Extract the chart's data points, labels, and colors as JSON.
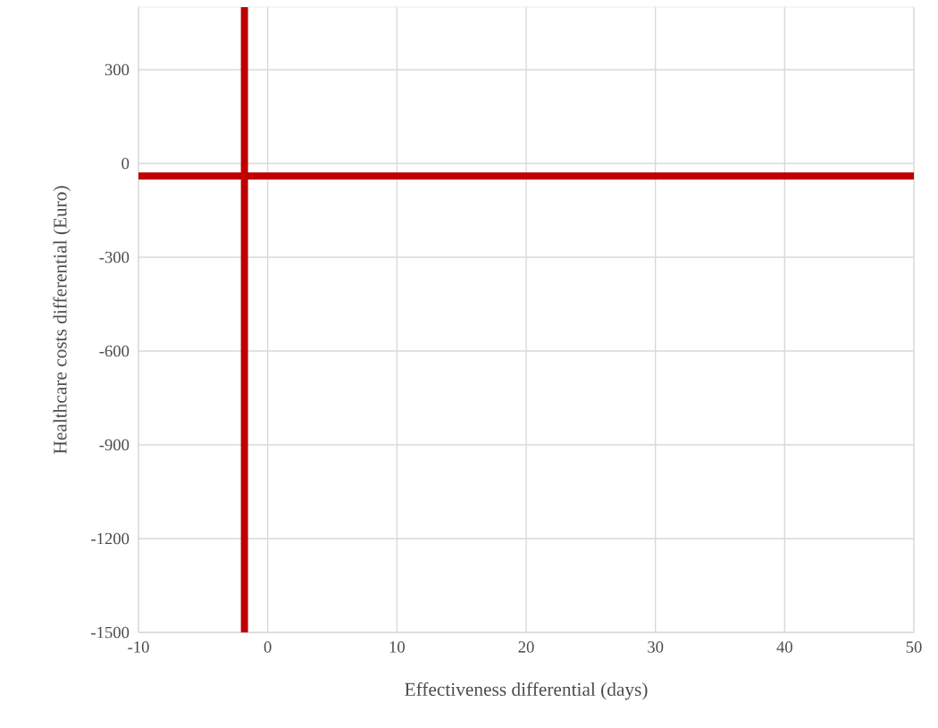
{
  "chart_data": {
    "type": "scatter",
    "xlabel": "Effectiveness differential (days)",
    "ylabel": "Healthcare costs differential (Euro)",
    "xlim": [
      -10,
      50
    ],
    "ylim": [
      -1500,
      500
    ],
    "xticks": [
      -10,
      0,
      10,
      20,
      30,
      40,
      50
    ],
    "yticks": [
      -1500,
      -1200,
      -900,
      -600,
      -300,
      0,
      300
    ],
    "grid": true,
    "ref_lines": [
      {
        "axis": "x",
        "value": -1.8,
        "color": "#c00000"
      },
      {
        "axis": "y",
        "value": -40,
        "color": "#c00000"
      }
    ]
  }
}
